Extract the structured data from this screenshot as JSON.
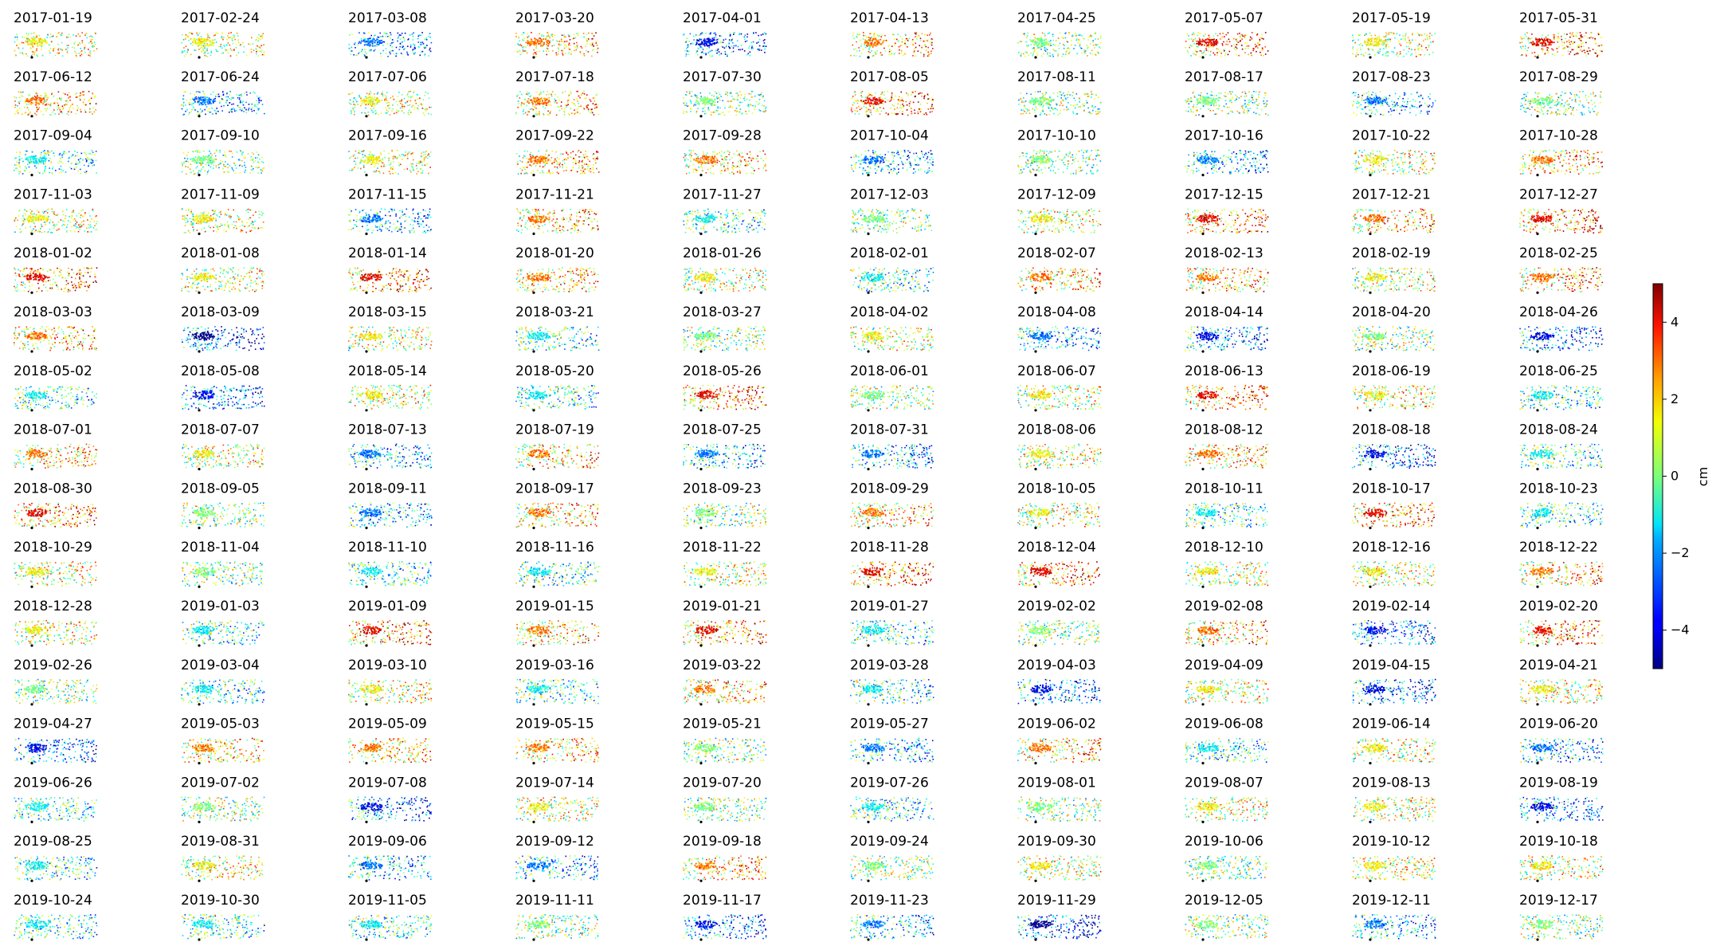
{
  "chart_data": {
    "type": "scatter",
    "grid": false,
    "panel_titles": [
      "2017-01-19",
      "2017-02-24",
      "2017-03-08",
      "2017-03-20",
      "2017-04-01",
      "2017-04-13",
      "2017-04-25",
      "2017-05-07",
      "2017-05-19",
      "2017-05-31",
      "2017-06-12",
      "2017-06-24",
      "2017-07-06",
      "2017-07-18",
      "2017-07-30",
      "2017-08-05",
      "2017-08-11",
      "2017-08-17",
      "2017-08-23",
      "2017-08-29",
      "2017-09-04",
      "2017-09-10",
      "2017-09-16",
      "2017-09-22",
      "2017-09-28",
      "2017-10-04",
      "2017-10-10",
      "2017-10-16",
      "2017-10-22",
      "2017-10-28",
      "2017-11-03",
      "2017-11-09",
      "2017-11-15",
      "2017-11-21",
      "2017-11-27",
      "2017-12-03",
      "2017-12-09",
      "2017-12-15",
      "2017-12-21",
      "2017-12-27",
      "2018-01-02",
      "2018-01-08",
      "2018-01-14",
      "2018-01-20",
      "2018-01-26",
      "2018-02-01",
      "2018-02-07",
      "2018-02-13",
      "2018-02-19",
      "2018-02-25",
      "2018-03-03",
      "2018-03-09",
      "2018-03-15",
      "2018-03-21",
      "2018-03-27",
      "2018-04-02",
      "2018-04-08",
      "2018-04-14",
      "2018-04-20",
      "2018-04-26",
      "2018-05-02",
      "2018-05-08",
      "2018-05-14",
      "2018-05-20",
      "2018-05-26",
      "2018-06-01",
      "2018-06-07",
      "2018-06-13",
      "2018-06-19",
      "2018-06-25",
      "2018-07-01",
      "2018-07-07",
      "2018-07-13",
      "2018-07-19",
      "2018-07-25",
      "2018-07-31",
      "2018-08-06",
      "2018-08-12",
      "2018-08-18",
      "2018-08-24",
      "2018-08-30",
      "2018-09-05",
      "2018-09-11",
      "2018-09-17",
      "2018-09-23",
      "2018-09-29",
      "2018-10-05",
      "2018-10-11",
      "2018-10-17",
      "2018-10-23",
      "2018-10-29",
      "2018-11-04",
      "2018-11-10",
      "2018-11-16",
      "2018-11-22",
      "2018-11-28",
      "2018-12-04",
      "2018-12-10",
      "2018-12-16",
      "2018-12-22",
      "2018-12-28",
      "2019-01-03",
      "2019-01-09",
      "2019-01-15",
      "2019-01-21",
      "2019-01-27",
      "2019-02-02",
      "2019-02-08",
      "2019-02-14",
      "2019-02-20",
      "2019-02-26",
      "2019-03-04",
      "2019-03-10",
      "2019-03-16",
      "2019-03-22",
      "2019-03-28",
      "2019-04-03",
      "2019-04-09",
      "2019-04-15",
      "2019-04-21",
      "2019-04-27",
      "2019-05-03",
      "2019-05-09",
      "2019-05-15",
      "2019-05-21",
      "2019-05-27",
      "2019-06-02",
      "2019-06-08",
      "2019-06-14",
      "2019-06-20",
      "2019-06-26",
      "2019-07-02",
      "2019-07-08",
      "2019-07-14",
      "2019-07-20",
      "2019-07-26",
      "2019-08-01",
      "2019-08-07",
      "2019-08-13",
      "2019-08-19",
      "2019-08-25",
      "2019-08-31",
      "2019-09-06",
      "2019-09-12",
      "2019-09-18",
      "2019-09-24",
      "2019-09-30",
      "2019-10-06",
      "2019-10-12",
      "2019-10-18",
      "2019-10-24",
      "2019-10-30",
      "2019-11-05",
      "2019-11-11",
      "2019-11-17",
      "2019-11-23",
      "2019-11-29",
      "2019-12-05",
      "2019-12-11",
      "2019-12-17"
    ],
    "panel_mean_cm": [
      1,
      1,
      -2,
      2,
      -3,
      2,
      0,
      3,
      1,
      3,
      2,
      -2,
      1,
      2,
      0,
      3,
      0,
      0,
      -2,
      0,
      -1,
      0,
      1,
      2,
      2,
      -2,
      0,
      -2,
      1,
      2,
      1,
      1,
      -2,
      2,
      -1,
      0,
      1,
      3,
      2,
      3,
      3,
      1,
      3,
      2,
      1,
      -1,
      2,
      2,
      1,
      2,
      2,
      -4,
      1,
      -1,
      0,
      1,
      -2,
      -3,
      0,
      -3,
      -1,
      -3,
      1,
      -1,
      3,
      0,
      1,
      3,
      1,
      -1,
      2,
      1,
      -2,
      2,
      -2,
      -2,
      1,
      2,
      -3,
      -1,
      3,
      0,
      -2,
      2,
      0,
      2,
      1,
      -1,
      3,
      -1,
      1,
      0,
      -1,
      -1,
      1,
      3,
      3,
      1,
      1,
      2,
      1,
      -1,
      3,
      2,
      3,
      -1,
      0,
      2,
      -3,
      3,
      0,
      -1,
      1,
      -1,
      2,
      -1,
      -3,
      1,
      -3,
      1,
      -3,
      2,
      2,
      2,
      0,
      -2,
      2,
      -1,
      1,
      -2,
      -1,
      0,
      -3,
      1,
      0,
      -1,
      0,
      1,
      1,
      -3,
      -1,
      1,
      -2,
      -2,
      2,
      0,
      1,
      0,
      1,
      1,
      -1,
      -1,
      -1,
      0,
      -3,
      -2,
      -4,
      0,
      -2,
      0
    ],
    "colormap": "jet",
    "colorbar": {
      "label": "cm",
      "range": [
        -5,
        5
      ],
      "ticks": [
        -4,
        -2,
        0,
        2,
        4
      ],
      "tick_labels": [
        "−4",
        "−2",
        "0",
        "2",
        "4"
      ]
    },
    "layout": {
      "rows": 16,
      "cols": 10
    }
  }
}
